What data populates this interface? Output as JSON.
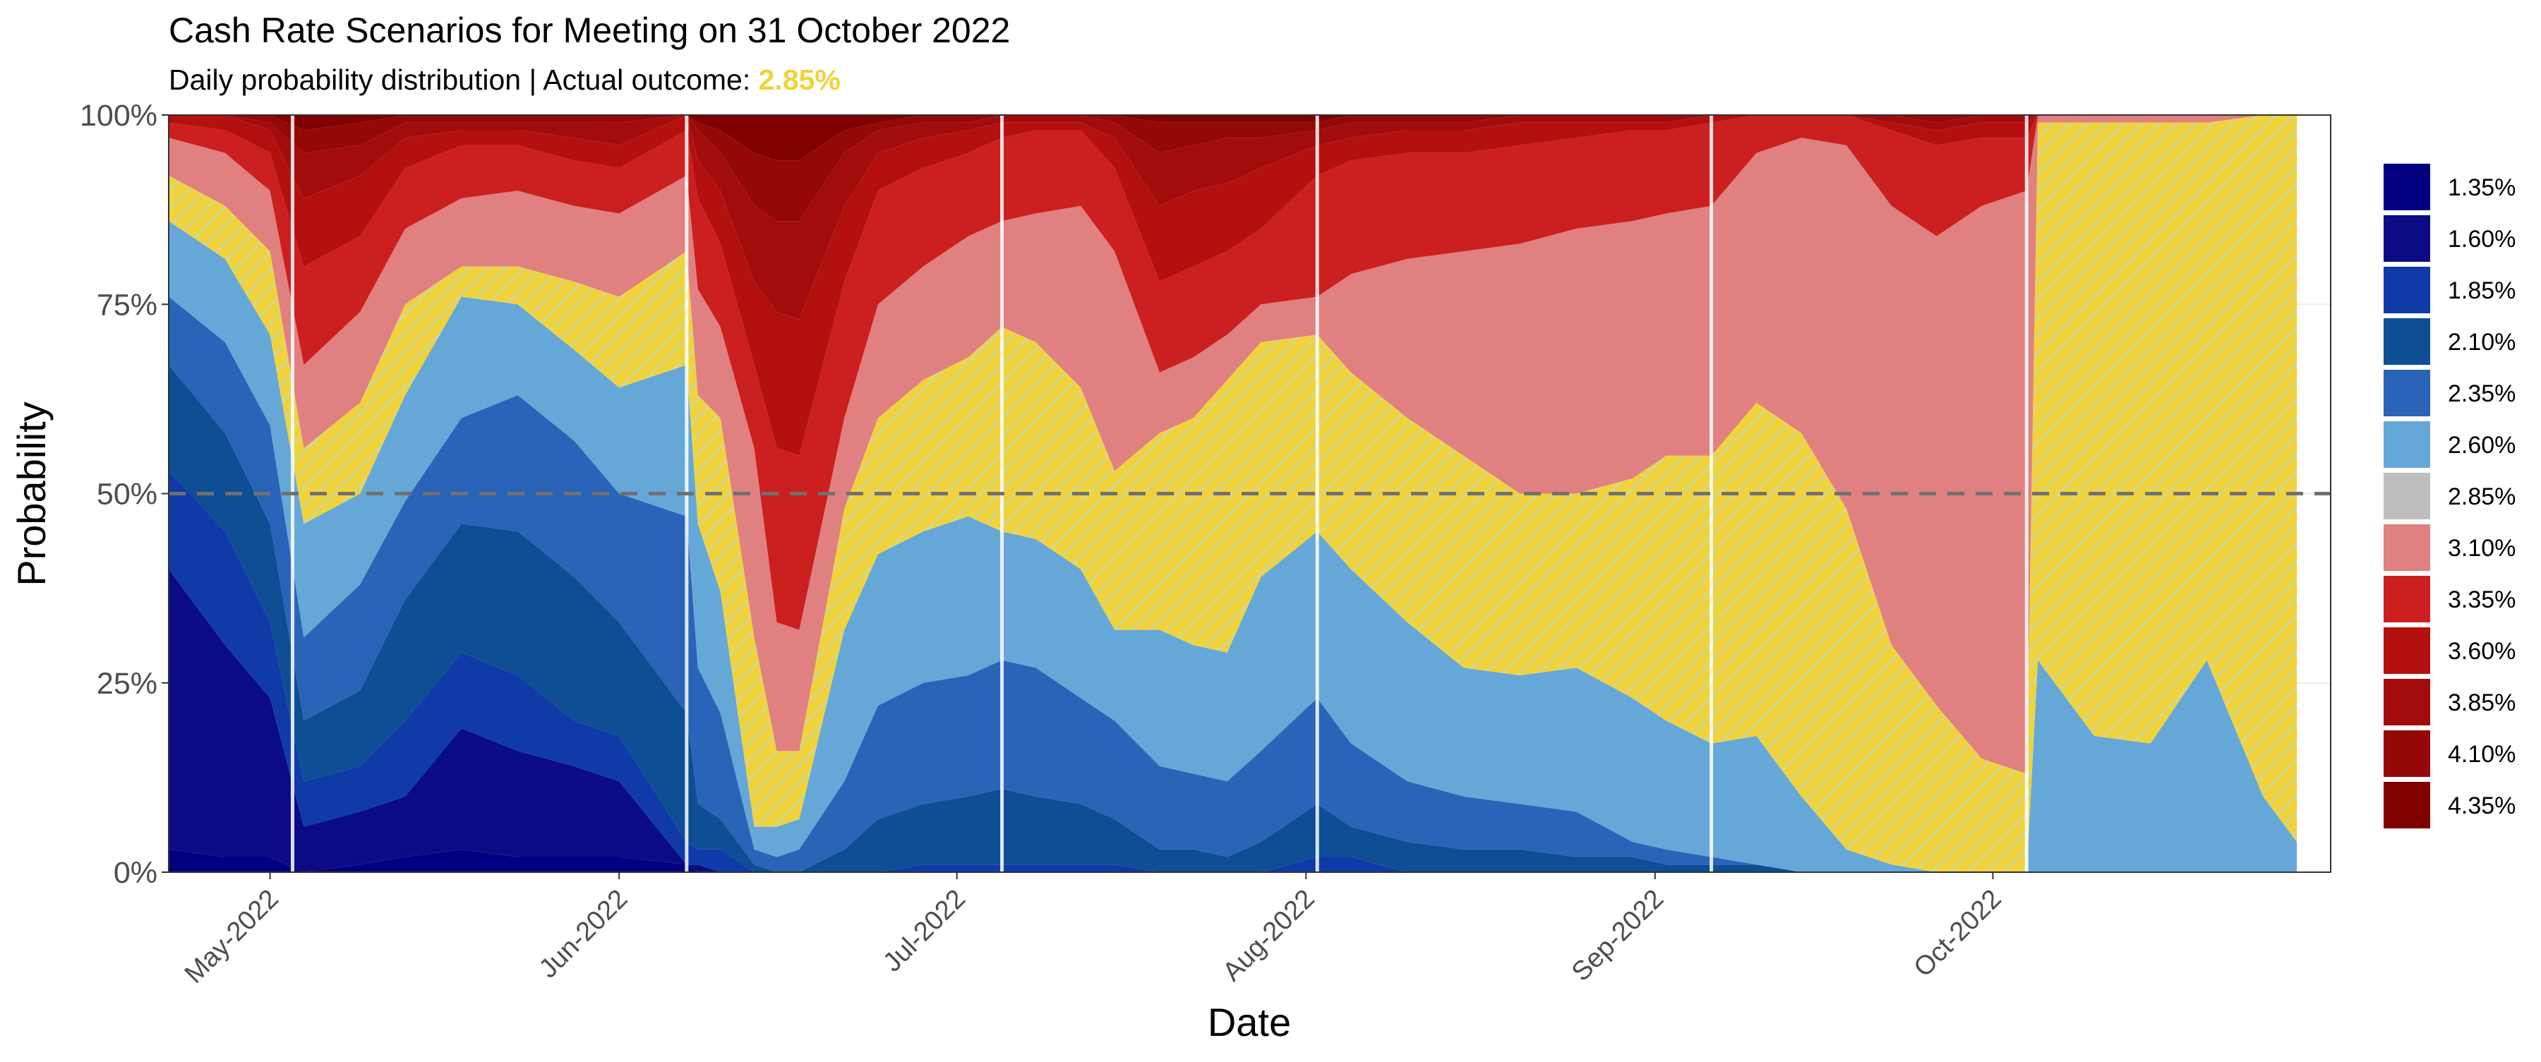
{
  "chart_data": {
    "type": "area",
    "title": "Cash Rate Scenarios for Meeting on 31 October 2022",
    "subtitle_prefix": "Daily probability distribution | Actual outcome: ",
    "subtitle_highlight": "2.85%",
    "xlabel": "Date",
    "ylabel": "Probability",
    "ylim": [
      0,
      1
    ],
    "yticks": [
      0,
      0.25,
      0.5,
      0.75,
      1.0
    ],
    "ytick_labels": [
      "0%",
      "25%",
      "50%",
      "75%",
      "100%"
    ],
    "xlim": [
      "2022-04-22",
      "2022-10-31"
    ],
    "xticks": [
      "2022-05-01",
      "2022-06-01",
      "2022-07-01",
      "2022-08-01",
      "2022-09-01",
      "2022-10-01"
    ],
    "xtick_labels": [
      "May-2022",
      "Jun-2022",
      "Jul-2022",
      "Aug-2022",
      "Sep-2022",
      "Oct-2022"
    ],
    "reference_line": 0.5,
    "rba_meeting_dates": [
      "2022-05-03",
      "2022-06-07",
      "2022-07-05",
      "2022-08-02",
      "2022-09-06",
      "2022-10-04"
    ],
    "grid": true,
    "legend_position": "right",
    "actual_outcome_rate": "2.85%",
    "colors": {
      "1.35%": "#000080",
      "1.60%": "#0b0b86",
      "1.85%": "#0f3aa8",
      "2.10%": "#0d4e94",
      "2.35%": "#2a64b8",
      "2.60%": "#65a8d8",
      "2.85%": "#bebebe",
      "3.10%": "#e08080",
      "3.35%": "#cc1f1f",
      "3.60%": "#b51010",
      "3.85%": "#a30c0c",
      "4.10%": "#940808",
      "4.35%": "#800000",
      "highlight_fill": "#f0d33c",
      "highlight_stripe": "#c9d7a8"
    },
    "series_names": [
      "1.35%",
      "1.60%",
      "1.85%",
      "2.10%",
      "2.35%",
      "2.60%",
      "2.85%",
      "3.10%",
      "3.35%",
      "3.60%",
      "3.85%",
      "4.10%",
      "4.35%"
    ],
    "x": [
      "2022-04-22",
      "2022-04-27",
      "2022-05-01",
      "2022-05-04",
      "2022-05-09",
      "2022-05-13",
      "2022-05-18",
      "2022-05-23",
      "2022-05-28",
      "2022-06-01",
      "2022-06-07",
      "2022-06-08",
      "2022-06-10",
      "2022-06-13",
      "2022-06-15",
      "2022-06-17",
      "2022-06-21",
      "2022-06-24",
      "2022-06-28",
      "2022-07-02",
      "2022-07-05",
      "2022-07-08",
      "2022-07-12",
      "2022-07-15",
      "2022-07-19",
      "2022-07-22",
      "2022-07-25",
      "2022-07-28",
      "2022-08-02",
      "2022-08-05",
      "2022-08-10",
      "2022-08-15",
      "2022-08-20",
      "2022-08-25",
      "2022-08-30",
      "2022-09-02",
      "2022-09-06",
      "2022-09-10",
      "2022-09-14",
      "2022-09-18",
      "2022-09-22",
      "2022-09-26",
      "2022-09-30",
      "2022-10-04",
      "2022-10-05",
      "2022-10-10",
      "2022-10-15",
      "2022-10-20",
      "2022-10-25",
      "2022-10-28"
    ],
    "upper_bounds": {
      "1.35%": [
        0.03,
        0.02,
        0.02,
        0.0,
        0.01,
        0.02,
        0.03,
        0.02,
        0.02,
        0.02,
        0.01,
        0.0,
        0.0,
        0.0,
        0.0,
        0.0,
        0.0,
        0.0,
        0.0,
        0.0,
        0.0,
        0.0,
        0.0,
        0.0,
        0.0,
        0.0,
        0.0,
        0.0,
        0.0,
        0.0,
        0.0,
        0.0,
        0.0,
        0.0,
        0.0,
        0.0,
        0.0,
        0.0,
        0.0,
        0.0,
        0.0,
        0.0,
        0.0,
        0.0,
        0.0,
        0.0,
        0.0,
        0.0,
        0.0,
        0.0
      ],
      "1.60%": [
        0.4,
        0.3,
        0.23,
        0.06,
        0.08,
        0.1,
        0.19,
        0.16,
        0.14,
        0.12,
        0.01,
        0.01,
        0.0,
        0.0,
        0.0,
        0.0,
        0.0,
        0.0,
        0.0,
        0.0,
        0.0,
        0.0,
        0.0,
        0.0,
        0.0,
        0.0,
        0.0,
        0.0,
        0.0,
        0.0,
        0.0,
        0.0,
        0.0,
        0.0,
        0.0,
        0.0,
        0.0,
        0.0,
        0.0,
        0.0,
        0.0,
        0.0,
        0.0,
        0.0,
        0.0,
        0.0,
        0.0,
        0.0,
        0.0,
        0.0
      ],
      "1.85%": [
        0.53,
        0.45,
        0.33,
        0.12,
        0.14,
        0.2,
        0.29,
        0.26,
        0.2,
        0.18,
        0.04,
        0.03,
        0.03,
        0.0,
        0.0,
        0.0,
        0.0,
        0.0,
        0.01,
        0.01,
        0.01,
        0.01,
        0.01,
        0.01,
        0.0,
        0.0,
        0.0,
        0.0,
        0.02,
        0.02,
        0.0,
        0.0,
        0.0,
        0.0,
        0.0,
        0.0,
        0.0,
        0.0,
        0.0,
        0.0,
        0.0,
        0.0,
        0.0,
        0.0,
        0.0,
        0.0,
        0.0,
        0.0,
        0.0,
        0.0
      ],
      "2.10%": [
        0.67,
        0.58,
        0.46,
        0.2,
        0.24,
        0.36,
        0.46,
        0.45,
        0.39,
        0.33,
        0.21,
        0.09,
        0.07,
        0.01,
        0.0,
        0.0,
        0.03,
        0.07,
        0.09,
        0.1,
        0.11,
        0.1,
        0.09,
        0.07,
        0.03,
        0.03,
        0.02,
        0.04,
        0.09,
        0.06,
        0.04,
        0.03,
        0.03,
        0.02,
        0.02,
        0.01,
        0.01,
        0.01,
        0.0,
        0.0,
        0.0,
        0.0,
        0.0,
        0.0,
        0.0,
        0.0,
        0.0,
        0.0,
        0.0,
        0.0
      ],
      "2.35%": [
        0.76,
        0.7,
        0.59,
        0.31,
        0.38,
        0.49,
        0.6,
        0.63,
        0.57,
        0.5,
        0.47,
        0.27,
        0.21,
        0.03,
        0.02,
        0.03,
        0.12,
        0.22,
        0.25,
        0.26,
        0.28,
        0.27,
        0.23,
        0.2,
        0.14,
        0.13,
        0.12,
        0.16,
        0.23,
        0.17,
        0.12,
        0.1,
        0.09,
        0.08,
        0.04,
        0.03,
        0.02,
        0.01,
        0.0,
        0.0,
        0.0,
        0.0,
        0.0,
        0.0,
        0.0,
        0.0,
        0.0,
        0.0,
        0.0,
        0.0
      ],
      "2.60%": [
        0.86,
        0.81,
        0.71,
        0.46,
        0.5,
        0.63,
        0.76,
        0.75,
        0.69,
        0.64,
        0.67,
        0.46,
        0.37,
        0.06,
        0.06,
        0.07,
        0.32,
        0.42,
        0.45,
        0.47,
        0.45,
        0.44,
        0.4,
        0.32,
        0.32,
        0.3,
        0.29,
        0.39,
        0.45,
        0.4,
        0.33,
        0.27,
        0.26,
        0.27,
        0.23,
        0.2,
        0.17,
        0.18,
        0.1,
        0.03,
        0.01,
        0.0,
        0.0,
        0.0,
        0.28,
        0.18,
        0.17,
        0.28,
        0.1,
        0.04
      ],
      "2.85%": [
        0.92,
        0.88,
        0.82,
        0.56,
        0.62,
        0.75,
        0.8,
        0.8,
        0.78,
        0.76,
        0.82,
        0.63,
        0.6,
        0.31,
        0.16,
        0.16,
        0.48,
        0.6,
        0.65,
        0.68,
        0.72,
        0.7,
        0.64,
        0.53,
        0.58,
        0.6,
        0.65,
        0.7,
        0.71,
        0.66,
        0.6,
        0.55,
        0.5,
        0.5,
        0.52,
        0.55,
        0.55,
        0.62,
        0.58,
        0.48,
        0.3,
        0.22,
        0.15,
        0.13,
        0.99,
        0.99,
        0.99,
        0.99,
        1.0,
        1.0
      ],
      "3.10%": [
        0.97,
        0.95,
        0.9,
        0.67,
        0.74,
        0.85,
        0.89,
        0.9,
        0.88,
        0.87,
        0.92,
        0.77,
        0.72,
        0.56,
        0.33,
        0.32,
        0.6,
        0.75,
        0.8,
        0.84,
        0.86,
        0.87,
        0.88,
        0.82,
        0.66,
        0.68,
        0.71,
        0.75,
        0.76,
        0.79,
        0.81,
        0.82,
        0.83,
        0.85,
        0.86,
        0.87,
        0.88,
        0.95,
        0.97,
        0.96,
        0.88,
        0.84,
        0.88,
        0.9,
        1.0,
        1.0,
        1.0,
        1.0,
        1.0,
        1.0
      ],
      "3.35%": [
        0.99,
        0.98,
        0.95,
        0.8,
        0.84,
        0.93,
        0.96,
        0.96,
        0.94,
        0.93,
        0.98,
        0.89,
        0.83,
        0.67,
        0.56,
        0.55,
        0.78,
        0.9,
        0.93,
        0.95,
        0.97,
        0.98,
        0.98,
        0.93,
        0.78,
        0.8,
        0.82,
        0.85,
        0.92,
        0.94,
        0.95,
        0.95,
        0.96,
        0.97,
        0.98,
        0.98,
        0.99,
        1.0,
        1.0,
        1.0,
        0.98,
        0.96,
        0.97,
        0.97,
        1.0,
        1.0,
        1.0,
        1.0,
        1.0,
        1.0
      ],
      "3.60%": [
        1.0,
        1.0,
        0.98,
        0.89,
        0.92,
        0.97,
        0.98,
        0.98,
        0.97,
        0.96,
        1.0,
        0.94,
        0.9,
        0.78,
        0.74,
        0.73,
        0.88,
        0.95,
        0.97,
        0.98,
        0.99,
        0.99,
        0.99,
        0.97,
        0.88,
        0.9,
        0.91,
        0.93,
        0.96,
        0.97,
        0.98,
        0.98,
        0.99,
        0.99,
        0.99,
        0.99,
        1.0,
        1.0,
        1.0,
        1.0,
        0.99,
        0.98,
        0.99,
        0.99,
        1.0,
        1.0,
        1.0,
        1.0,
        1.0,
        1.0
      ],
      "3.85%": [
        1.0,
        1.0,
        0.99,
        0.95,
        0.96,
        0.99,
        0.99,
        0.99,
        0.99,
        0.99,
        1.0,
        0.98,
        0.95,
        0.88,
        0.86,
        0.86,
        0.95,
        0.98,
        0.99,
        0.99,
        1.0,
        1.0,
        1.0,
        0.99,
        0.95,
        0.96,
        0.97,
        0.97,
        0.98,
        0.99,
        0.99,
        0.99,
        1.0,
        1.0,
        1.0,
        1.0,
        1.0,
        1.0,
        1.0,
        1.0,
        1.0,
        0.99,
        1.0,
        1.0,
        1.0,
        1.0,
        1.0,
        1.0,
        1.0,
        1.0
      ],
      "4.10%": [
        1.0,
        1.0,
        1.0,
        0.98,
        0.99,
        1.0,
        1.0,
        1.0,
        1.0,
        1.0,
        1.0,
        0.99,
        0.98,
        0.95,
        0.94,
        0.94,
        0.98,
        0.99,
        1.0,
        1.0,
        1.0,
        1.0,
        1.0,
        1.0,
        0.99,
        0.99,
        0.99,
        0.99,
        0.99,
        1.0,
        1.0,
        1.0,
        1.0,
        1.0,
        1.0,
        1.0,
        1.0,
        1.0,
        1.0,
        1.0,
        1.0,
        1.0,
        1.0,
        1.0,
        1.0,
        1.0,
        1.0,
        1.0,
        1.0,
        1.0
      ],
      "4.35%": [
        1.0,
        1.0,
        1.0,
        1.0,
        1.0,
        1.0,
        1.0,
        1.0,
        1.0,
        1.0,
        1.0,
        1.0,
        1.0,
        1.0,
        1.0,
        1.0,
        1.0,
        1.0,
        1.0,
        1.0,
        1.0,
        1.0,
        1.0,
        1.0,
        1.0,
        1.0,
        1.0,
        1.0,
        1.0,
        1.0,
        1.0,
        1.0,
        1.0,
        1.0,
        1.0,
        1.0,
        1.0,
        1.0,
        1.0,
        1.0,
        1.0,
        1.0,
        1.0,
        1.0,
        1.0,
        1.0,
        1.0,
        1.0,
        1.0,
        1.0
      ]
    }
  }
}
